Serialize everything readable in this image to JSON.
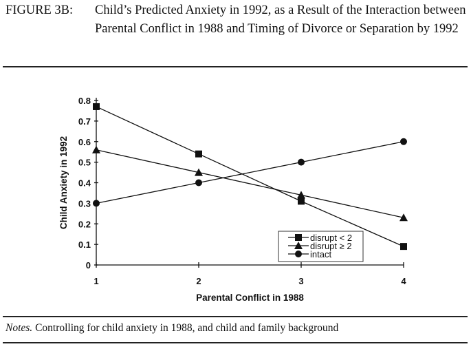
{
  "caption": {
    "label": "FIGURE 3B:",
    "text": "Child’s Predicted Anxiety in 1992, as a Result of the Interaction between Parental Conflict in 1988 and Timing of Divorce or Separation by 1992"
  },
  "notes": {
    "label": "Notes.",
    "text": " Controlling for child anxiety in 1988, and child and family background"
  },
  "chart_data": {
    "type": "line",
    "title": "",
    "xlabel": "Parental Conflict in 1988",
    "ylabel": "Child Anxiety in 1992",
    "x": [
      1,
      2,
      3,
      4
    ],
    "xticks": [
      "1",
      "2",
      "3",
      "4"
    ],
    "yticks": [
      "0",
      "0.1",
      "0.2",
      "0.3",
      "0.4",
      "0.5",
      "0.6",
      "0.7",
      "0.8"
    ],
    "ylim": [
      0,
      0.8
    ],
    "xlim": [
      1,
      4
    ],
    "grid": false,
    "legend_position": "bottom-right",
    "series": [
      {
        "name": "disrupt < 2",
        "marker": "square",
        "values": [
          0.77,
          0.54,
          0.31,
          0.09
        ]
      },
      {
        "name": "disrupt ≥ 2",
        "marker": "triangle",
        "values": [
          0.56,
          0.45,
          0.34,
          0.23
        ]
      },
      {
        "name": "intact",
        "marker": "circle",
        "values": [
          0.3,
          0.4,
          0.5,
          0.6
        ]
      }
    ]
  }
}
